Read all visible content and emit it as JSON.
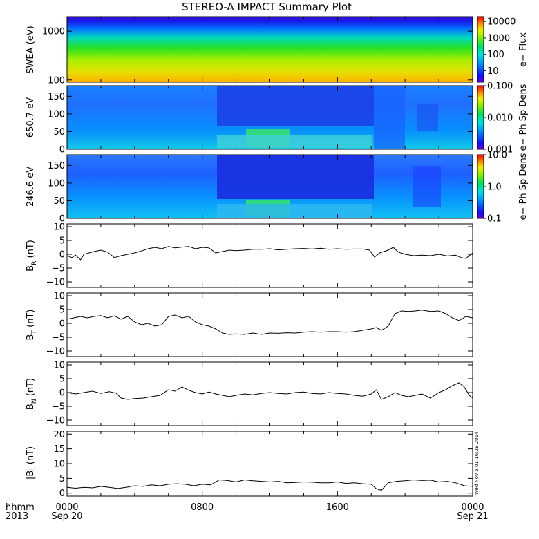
{
  "title": "STEREO-A IMPACT Summary Plot",
  "stamp": "Wed Nov  5 01:16:28 2014",
  "time_axis": {
    "row1_label": "hhmm",
    "row2_label": "2013",
    "ticks": [
      {
        "hour": 0,
        "top": "0000",
        "bottom": "Sep 20"
      },
      {
        "hour": 8,
        "top": "0800",
        "bottom": ""
      },
      {
        "hour": 16,
        "top": "1600",
        "bottom": ""
      },
      {
        "hour": 24,
        "top": "0000",
        "bottom": "Sep 21"
      }
    ]
  },
  "colorbars": [
    {
      "label": "e− Flux",
      "ticks": [
        {
          "v": 10,
          "t": "10"
        },
        {
          "v": 100,
          "t": "100"
        },
        {
          "v": 1000,
          "t": "1000"
        },
        {
          "v": 10000,
          "t": "10000"
        }
      ],
      "range": [
        2,
        20000
      ]
    },
    {
      "label": "e− Ph Sp Dens",
      "ticks": [
        {
          "v": 0.001,
          "t": "0.001"
        },
        {
          "v": 0.01,
          "t": "0.010"
        },
        {
          "v": 0.1,
          "t": "0.100"
        }
      ],
      "range": [
        0.001,
        0.1
      ]
    },
    {
      "label": "e− Ph Sp Dens",
      "ticks": [
        {
          "v": 0.1,
          "t": "0.1"
        },
        {
          "v": 1,
          "t": "1.0"
        },
        {
          "v": 10,
          "t": "10.0"
        }
      ],
      "range": [
        0.1,
        10
      ]
    }
  ],
  "colors": {
    "line": "#000000",
    "background": "#ffffff"
  },
  "chart_data": [
    {
      "type": "heatmap",
      "ylabel": "SWEA (eV)",
      "y_scale": "log",
      "ylim": [
        90,
        2000
      ],
      "yticks": [
        {
          "v": 100,
          "t": "100"
        },
        {
          "v": 1000,
          "t": "1000"
        }
      ],
      "x_hours": [
        0,
        24
      ],
      "description_values": "electron flux: ~2-10 near 2000 eV rising to ~300-1000 near 100 eV"
    },
    {
      "type": "heatmap",
      "ylabel": "650.7 eV",
      "ylim": [
        0,
        180
      ],
      "yticks": [
        {
          "v": 0,
          "t": "0"
        },
        {
          "v": 50,
          "t": "50"
        },
        {
          "v": 100,
          "t": "100"
        },
        {
          "v": 150,
          "t": "150"
        }
      ],
      "x_hours": [
        0,
        24
      ]
    },
    {
      "type": "heatmap",
      "ylabel": "246.6 eV",
      "ylim": [
        0,
        180
      ],
      "yticks": [
        {
          "v": 0,
          "t": "0"
        },
        {
          "v": 50,
          "t": "50"
        },
        {
          "v": 100,
          "t": "100"
        },
        {
          "v": 150,
          "t": "150"
        }
      ],
      "x_hours": [
        0,
        24
      ]
    },
    {
      "type": "line",
      "ylabel_main": "B",
      "ylabel_sub": "R",
      "ylabel_unit": " (nT)",
      "ylim": [
        -12,
        11
      ],
      "yticks": [
        {
          "v": -10,
          "t": "−10"
        },
        {
          "v": -5,
          "t": "−5"
        },
        {
          "v": 0,
          "t": "0"
        },
        {
          "v": 5,
          "t": "5"
        },
        {
          "v": 10,
          "t": "10"
        }
      ],
      "x": [
        0,
        0.3,
        0.5,
        0.8,
        1.0,
        1.3,
        1.6,
        2.0,
        2.4,
        2.8,
        3.2,
        3.6,
        4.0,
        4.4,
        4.8,
        5.2,
        5.6,
        6.0,
        6.4,
        6.8,
        7.2,
        7.6,
        8.0,
        8.4,
        8.8,
        9.2,
        9.6,
        10.0,
        10.5,
        11,
        11.5,
        12,
        12.5,
        13,
        13.5,
        14,
        14.5,
        15,
        15.5,
        16,
        16.5,
        17,
        17.5,
        17.9,
        18.2,
        18.5,
        19,
        19.3,
        19.6,
        20,
        20.5,
        21,
        21.5,
        22,
        22.5,
        23,
        23.3,
        23.6,
        24
      ],
      "y": [
        -0.5,
        -1.2,
        -0.3,
        -2.0,
        0.0,
        0.5,
        1.0,
        1.5,
        0.8,
        -1.2,
        -0.5,
        0.0,
        0.5,
        1.2,
        2.0,
        2.5,
        2.0,
        2.8,
        2.3,
        2.6,
        2.8,
        2.0,
        2.5,
        2.3,
        0.5,
        1.0,
        1.5,
        1.3,
        1.5,
        1.8,
        1.8,
        2.0,
        1.6,
        1.8,
        2.0,
        2.1,
        1.9,
        2.2,
        1.8,
        2.0,
        1.8,
        1.9,
        1.9,
        1.5,
        -1.0,
        0.5,
        1.5,
        2.5,
        0.8,
        0.0,
        -0.5,
        -0.3,
        -0.5,
        0.0,
        -0.6,
        -0.3,
        -1.2,
        -1.5,
        0.5
      ]
    },
    {
      "type": "line",
      "ylabel_main": "B",
      "ylabel_sub": "T",
      "ylabel_unit": " (nT)",
      "ylim": [
        -12,
        11
      ],
      "yticks": [
        {
          "v": -10,
          "t": "−10"
        },
        {
          "v": -5,
          "t": "−5"
        },
        {
          "v": 0,
          "t": "0"
        },
        {
          "v": 5,
          "t": "5"
        },
        {
          "v": 10,
          "t": "10"
        }
      ],
      "x": [
        0,
        0.4,
        0.8,
        1.2,
        1.6,
        2.0,
        2.4,
        2.8,
        3.2,
        3.6,
        4.0,
        4.4,
        4.8,
        5.2,
        5.6,
        6.0,
        6.4,
        6.8,
        7.2,
        7.6,
        8.0,
        8.4,
        8.8,
        9.2,
        9.6,
        10.0,
        10.5,
        11,
        11.5,
        12,
        12.5,
        13,
        13.5,
        14,
        14.5,
        15,
        15.5,
        16,
        16.5,
        17,
        17.5,
        18,
        18.3,
        18.6,
        19,
        19.4,
        19.8,
        20.2,
        20.6,
        21,
        21.5,
        22,
        22.4,
        22.8,
        23.2,
        23.6,
        24
      ],
      "y": [
        1.5,
        2.0,
        2.5,
        2.0,
        2.5,
        2.8,
        2.0,
        2.7,
        1.5,
        2.5,
        0.5,
        -0.5,
        0.0,
        -1.0,
        -0.5,
        2.5,
        3.0,
        2.0,
        2.5,
        0.5,
        -0.5,
        -1.0,
        -2.0,
        -3.5,
        -4.0,
        -3.8,
        -4.0,
        -3.5,
        -4.0,
        -3.5,
        -3.6,
        -3.4,
        -3.5,
        -3.2,
        -3.0,
        -3.2,
        -3.0,
        -3.0,
        -3.2,
        -3.0,
        -2.5,
        -2.0,
        -1.5,
        -2.5,
        -1.0,
        3.5,
        4.5,
        4.3,
        4.5,
        4.8,
        4.3,
        4.5,
        3.5,
        2.0,
        1.0,
        2.5,
        2.0
      ]
    },
    {
      "type": "line",
      "ylabel_main": "B",
      "ylabel_sub": "N",
      "ylabel_unit": " (nT)",
      "ylim": [
        -12,
        11
      ],
      "yticks": [
        {
          "v": -10,
          "t": "−10"
        },
        {
          "v": -5,
          "t": "−5"
        },
        {
          "v": 0,
          "t": "0"
        },
        {
          "v": 5,
          "t": "5"
        },
        {
          "v": 10,
          "t": "10"
        }
      ],
      "x": [
        0,
        0.5,
        1.0,
        1.5,
        2.0,
        2.5,
        2.9,
        3.2,
        3.6,
        4.0,
        4.5,
        5.0,
        5.5,
        6.0,
        6.4,
        6.8,
        7.2,
        7.6,
        8.0,
        8.4,
        8.8,
        9.2,
        9.6,
        10.0,
        10.5,
        11,
        11.5,
        12,
        12.5,
        13,
        13.5,
        14,
        14.5,
        15,
        15.5,
        16,
        16.5,
        17,
        17.5,
        18,
        18.3,
        18.6,
        19,
        19.4,
        19.8,
        20.2,
        20.6,
        21,
        21.5,
        22,
        22.4,
        22.8,
        23.2,
        23.5,
        23.8,
        24
      ],
      "y": [
        0.0,
        -0.5,
        0.0,
        0.5,
        -0.3,
        0.3,
        -0.2,
        -2.0,
        -2.5,
        -2.2,
        -2.0,
        -1.5,
        -1.0,
        1.0,
        0.5,
        2.0,
        0.8,
        0.0,
        -0.5,
        0.2,
        -0.5,
        -1.0,
        -1.5,
        -1.0,
        -0.5,
        -0.8,
        -0.3,
        0.0,
        -0.3,
        -0.5,
        0.0,
        0.2,
        -0.3,
        -0.5,
        0.0,
        -0.3,
        -0.5,
        -1.0,
        -1.3,
        -0.5,
        1.0,
        -2.5,
        -1.5,
        0.0,
        -1.0,
        -1.5,
        -1.0,
        -0.5,
        -2.0,
        0.0,
        1.0,
        2.5,
        3.5,
        2.0,
        -1.0,
        -2.0
      ]
    },
    {
      "type": "line",
      "ylabel": "|B| (nT)",
      "ylim": [
        -1,
        21
      ],
      "yticks": [
        {
          "v": 0,
          "t": "0"
        },
        {
          "v": 5,
          "t": "5"
        },
        {
          "v": 10,
          "t": "10"
        },
        {
          "v": 15,
          "t": "15"
        },
        {
          "v": 20,
          "t": "20"
        }
      ],
      "x": [
        0,
        0.5,
        1.0,
        1.5,
        2.0,
        2.5,
        3.0,
        3.5,
        4.0,
        4.5,
        5.0,
        5.5,
        6.0,
        6.5,
        7.0,
        7.5,
        8.0,
        8.5,
        9.0,
        9.5,
        10.0,
        10.5,
        11,
        11.5,
        12,
        12.5,
        13,
        13.5,
        14,
        14.5,
        15,
        15.5,
        16,
        16.5,
        17,
        17.5,
        18,
        18.3,
        18.6,
        19,
        19.5,
        20,
        20.5,
        21,
        21.5,
        22,
        22.5,
        23,
        23.5,
        24
      ],
      "y": [
        2.0,
        1.7,
        2.0,
        1.8,
        2.3,
        2.0,
        1.6,
        2.0,
        2.5,
        2.3,
        2.8,
        2.5,
        3.0,
        3.2,
        3.0,
        2.5,
        3.0,
        2.8,
        4.5,
        4.3,
        3.8,
        4.5,
        4.2,
        4.0,
        3.8,
        4.0,
        3.5,
        3.6,
        3.8,
        3.7,
        3.5,
        3.5,
        3.8,
        3.3,
        3.5,
        3.2,
        3.0,
        1.5,
        1.0,
        3.5,
        4.0,
        4.2,
        4.5,
        4.3,
        4.4,
        3.8,
        4.0,
        3.5,
        2.5,
        2.3
      ]
    }
  ]
}
